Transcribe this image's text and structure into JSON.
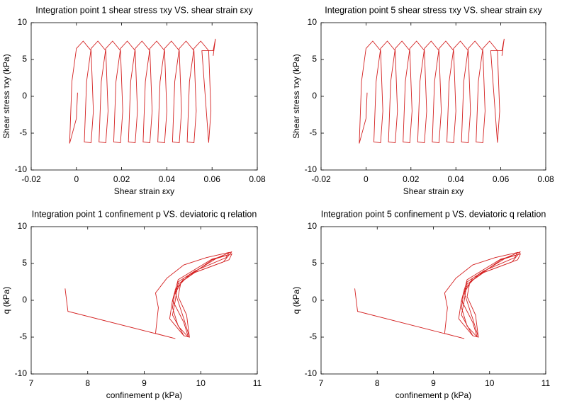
{
  "chart_data": [
    {
      "type": "line",
      "title": "Integration point 1 shear stress τxy VS. shear strain εxy",
      "xlabel": "Shear strain εxy",
      "ylabel": "Shear stress τxy (kPa)",
      "color": "#d42020",
      "xlim": [
        -0.02,
        0.08
      ],
      "xticks": [
        -0.02,
        0,
        0.02,
        0.04,
        0.06,
        0.08
      ],
      "ylim": [
        -10,
        10
      ],
      "yticks": [
        -10,
        -5,
        0,
        5,
        10
      ],
      "x": [
        0.0005,
        0.0,
        -0.003,
        -0.002,
        0.0,
        0.003,
        0.0065,
        0.0075,
        0.0065,
        0.0035,
        0.0045,
        0.0065,
        0.0095,
        0.013,
        0.014,
        0.013,
        0.01,
        0.011,
        0.013,
        0.016,
        0.0195,
        0.0205,
        0.0195,
        0.0165,
        0.0175,
        0.0195,
        0.0225,
        0.026,
        0.027,
        0.026,
        0.023,
        0.024,
        0.026,
        0.029,
        0.0325,
        0.0335,
        0.0325,
        0.0295,
        0.0305,
        0.0325,
        0.0355,
        0.039,
        0.04,
        0.039,
        0.036,
        0.037,
        0.039,
        0.042,
        0.0455,
        0.0465,
        0.0455,
        0.0425,
        0.0435,
        0.0455,
        0.0485,
        0.052,
        0.053,
        0.052,
        0.049,
        0.05,
        0.052,
        0.055,
        0.0585,
        0.0595,
        0.0585,
        0.0555,
        0.0605,
        0.0615,
        0.0605
      ],
      "values": [
        0.5,
        -3,
        -6.4,
        2,
        6.5,
        7.5,
        6.2,
        -2,
        -6.3,
        -6.2,
        2,
        6.5,
        7.5,
        6.2,
        -2,
        -6.3,
        -6.2,
        2,
        6.5,
        7.5,
        6.2,
        -2,
        -6.3,
        -6.2,
        2,
        6.5,
        7.5,
        6.2,
        -2,
        -6.3,
        -6.2,
        2,
        6.5,
        7.5,
        6.2,
        -2,
        -6.3,
        -6.2,
        2,
        6.5,
        7.5,
        6.2,
        -2,
        -6.3,
        -6.2,
        2,
        6.5,
        7.5,
        6.2,
        -2,
        -6.3,
        -6.2,
        2,
        6.5,
        7.5,
        6.2,
        -2,
        -6.3,
        -6.2,
        2,
        6.5,
        7.5,
        6.2,
        -2,
        -6.3,
        6.2,
        6.2,
        7.8,
        5.5
      ]
    },
    {
      "type": "line",
      "title": "Integration point 5 shear stress τxy VS. shear strain εxy",
      "xlabel": "Shear strain εxy",
      "ylabel": "Shear stress τxy (kPa)",
      "color": "#d42020",
      "xlim": [
        -0.02,
        0.08
      ],
      "xticks": [
        -0.02,
        0,
        0.02,
        0.04,
        0.06,
        0.08
      ],
      "ylim": [
        -10,
        10
      ],
      "yticks": [
        -10,
        -5,
        0,
        5,
        10
      ],
      "x": [
        0.0005,
        0.0,
        -0.003,
        -0.002,
        0.0,
        0.003,
        0.0065,
        0.0075,
        0.0065,
        0.0035,
        0.0045,
        0.0065,
        0.0095,
        0.013,
        0.014,
        0.013,
        0.01,
        0.011,
        0.013,
        0.016,
        0.0195,
        0.0205,
        0.0195,
        0.0165,
        0.0175,
        0.0195,
        0.0225,
        0.026,
        0.027,
        0.026,
        0.023,
        0.024,
        0.026,
        0.029,
        0.0325,
        0.0335,
        0.0325,
        0.0295,
        0.0305,
        0.0325,
        0.0355,
        0.039,
        0.04,
        0.039,
        0.036,
        0.037,
        0.039,
        0.042,
        0.0455,
        0.0465,
        0.0455,
        0.0425,
        0.0435,
        0.0455,
        0.0485,
        0.052,
        0.053,
        0.052,
        0.049,
        0.05,
        0.052,
        0.055,
        0.0585,
        0.0595,
        0.0585,
        0.0555,
        0.0605,
        0.0615,
        0.0605
      ],
      "values": [
        0.5,
        -3,
        -6.4,
        2,
        6.5,
        7.5,
        6.2,
        -2,
        -6.3,
        -6.2,
        2,
        6.5,
        7.5,
        6.2,
        -2,
        -6.3,
        -6.2,
        2,
        6.5,
        7.5,
        6.2,
        -2,
        -6.3,
        -6.2,
        2,
        6.5,
        7.5,
        6.2,
        -2,
        -6.3,
        -6.2,
        2,
        6.5,
        7.5,
        6.2,
        -2,
        -6.3,
        -6.2,
        2,
        6.5,
        7.5,
        6.2,
        -2,
        -6.3,
        -6.2,
        2,
        6.5,
        7.5,
        6.2,
        -2,
        -6.3,
        -6.2,
        2,
        6.5,
        7.5,
        6.2,
        -2,
        -6.3,
        -6.2,
        2,
        6.5,
        7.5,
        6.2,
        -2,
        -6.3,
        6.2,
        6.2,
        7.8,
        5.5
      ]
    },
    {
      "type": "line",
      "title": "Integration point 1 confinement p VS. deviatoric q relation",
      "xlabel": "confinement p (kPa)",
      "ylabel": "q (kPa)",
      "color": "#d42020",
      "xlim": [
        7,
        11
      ],
      "xticks": [
        7,
        8,
        9,
        10,
        11
      ],
      "ylim": [
        -10,
        10
      ],
      "yticks": [
        -10,
        -5,
        0,
        5,
        10
      ],
      "x": [
        7.6,
        7.65,
        9.55,
        9.2,
        9.25,
        9.2,
        9.4,
        9.7,
        10.1,
        10.5,
        10.45,
        9.9,
        9.6,
        9.55,
        9.5,
        9.7,
        9.8,
        9.75,
        9.6,
        9.65,
        10.2,
        10.55,
        10.5,
        9.9,
        9.6,
        9.5,
        9.45,
        9.7,
        9.8,
        9.7,
        9.55,
        9.7,
        10.3,
        10.55,
        10.4,
        9.8,
        9.55,
        9.5,
        9.6,
        9.78,
        9.7,
        9.5,
        9.6,
        10.2,
        10.5
      ],
      "values": [
        1.6,
        -1.5,
        -5.2,
        -4.5,
        -1,
        1,
        3,
        4.8,
        5.8,
        6.5,
        5.8,
        4,
        2.5,
        0,
        -2,
        -4.8,
        -5,
        -2,
        0.5,
        2.5,
        5.5,
        6.3,
        5.5,
        3.8,
        2.2,
        0,
        -2.5,
        -4.8,
        -5,
        -2.5,
        1,
        3,
        5.8,
        6.6,
        5.2,
        3.5,
        1.5,
        -1,
        -3.5,
        -5,
        -3,
        0,
        2.8,
        5.6,
        6.2
      ]
    },
    {
      "type": "line",
      "title": "Integration point 5 confinement p VS. deviatoric q relation",
      "xlabel": "confinement p (kPa)",
      "ylabel": "q (kPa)",
      "color": "#d42020",
      "xlim": [
        7,
        11
      ],
      "xticks": [
        7,
        8,
        9,
        10,
        11
      ],
      "ylim": [
        -10,
        10
      ],
      "yticks": [
        -10,
        -5,
        0,
        5,
        10
      ],
      "x": [
        7.6,
        7.65,
        9.55,
        9.2,
        9.25,
        9.2,
        9.4,
        9.7,
        10.1,
        10.5,
        10.45,
        9.9,
        9.6,
        9.55,
        9.5,
        9.7,
        9.8,
        9.75,
        9.6,
        9.65,
        10.2,
        10.55,
        10.5,
        9.9,
        9.6,
        9.5,
        9.45,
        9.7,
        9.8,
        9.7,
        9.55,
        9.7,
        10.3,
        10.55,
        10.4,
        9.8,
        9.55,
        9.5,
        9.6,
        9.78,
        9.7,
        9.5,
        9.6,
        10.2,
        10.5
      ],
      "values": [
        1.6,
        -1.5,
        -5.2,
        -4.5,
        -1,
        1,
        3,
        4.8,
        5.8,
        6.5,
        5.8,
        4,
        2.5,
        0,
        -2,
        -4.8,
        -5,
        -2,
        0.5,
        2.5,
        5.5,
        6.3,
        5.5,
        3.8,
        2.2,
        0,
        -2.5,
        -4.8,
        -5,
        -2.5,
        1,
        3,
        5.8,
        6.6,
        5.2,
        3.5,
        1.5,
        -1,
        -3.5,
        -5,
        -3,
        0,
        2.8,
        5.6,
        6.2
      ]
    }
  ]
}
